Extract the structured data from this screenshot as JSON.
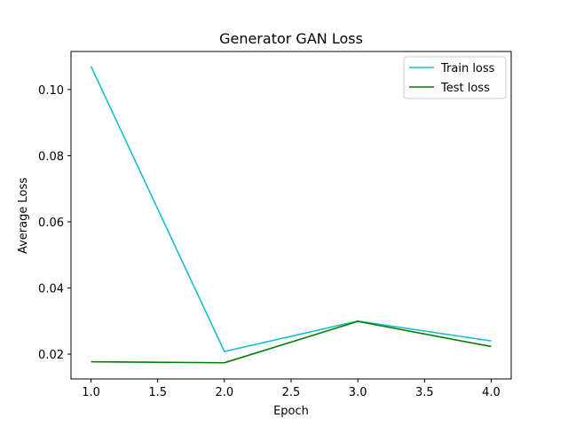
{
  "chart_data": {
    "type": "line",
    "title": "Generator GAN Loss",
    "xlabel": "Epoch",
    "ylabel": "Average Loss",
    "xlim": [
      0.85,
      4.15
    ],
    "ylim": [
      0.0125,
      0.1115
    ],
    "xticks": [
      1.0,
      1.5,
      2.0,
      2.5,
      3.0,
      3.5,
      4.0
    ],
    "xtick_labels": [
      "1.0",
      "1.5",
      "2.0",
      "2.5",
      "3.0",
      "3.5",
      "4.0"
    ],
    "yticks": [
      0.02,
      0.04,
      0.06,
      0.08,
      0.1
    ],
    "ytick_labels": [
      "0.02",
      "0.04",
      "0.06",
      "0.08",
      "0.10"
    ],
    "grid": false,
    "legend_position": "top-right",
    "x": [
      1,
      2,
      3,
      4
    ],
    "series": [
      {
        "name": "Train loss",
        "color": "#17becf",
        "values": [
          0.107,
          0.0208,
          0.03,
          0.024
        ]
      },
      {
        "name": "Test loss",
        "color": "#008000",
        "values": [
          0.0177,
          0.0174,
          0.0299,
          0.0223
        ]
      }
    ]
  }
}
